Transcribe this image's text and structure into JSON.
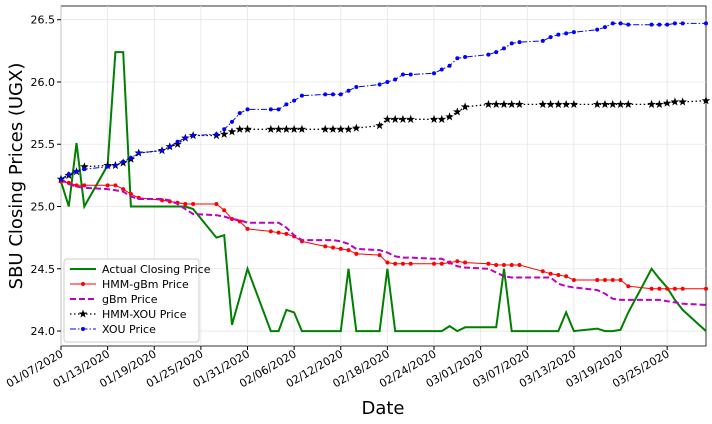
{
  "chart_data": {
    "type": "line",
    "y_label": "SBU Closing Prices (UGX)",
    "x_label": "Date",
    "grid": true,
    "legend": "lower left",
    "xlim": [
      "2020-01-07",
      "2020-03-30"
    ],
    "xticks": [
      {
        "value": "2020-01-07",
        "label": "01/07/2020"
      },
      {
        "value": "2020-01-13",
        "label": "01/13/2020"
      },
      {
        "value": "2020-01-19",
        "label": "01/19/2020"
      },
      {
        "value": "2020-01-25",
        "label": "01/25/2020"
      },
      {
        "value": "2020-01-31",
        "label": "01/31/2020"
      },
      {
        "value": "2020-02-06",
        "label": "02/06/2020"
      },
      {
        "value": "2020-02-12",
        "label": "02/12/2020"
      },
      {
        "value": "2020-02-18",
        "label": "02/18/2020"
      },
      {
        "value": "2020-02-24",
        "label": "02/24/2020"
      },
      {
        "value": "2020-03-01",
        "label": "03/01/2020"
      },
      {
        "value": "2020-03-07",
        "label": "03/07/2020"
      },
      {
        "value": "2020-03-13",
        "label": "03/13/2020"
      },
      {
        "value": "2020-03-19",
        "label": "03/19/2020"
      },
      {
        "value": "2020-03-25",
        "label": "03/25/2020"
      }
    ],
    "ylim": [
      23.88,
      26.61
    ],
    "yticks": [
      {
        "value": 24,
        "label": "24.0"
      },
      24.5,
      {
        "value": 25,
        "label": "25.0"
      },
      25.5,
      {
        "value": 26,
        "label": "26.0"
      },
      26.5
    ],
    "x": [
      "2020-01-07",
      "2020-01-08",
      "2020-01-09",
      "2020-01-10",
      "2020-01-13",
      "2020-01-14",
      "2020-01-15",
      "2020-01-16",
      "2020-01-17",
      "2020-01-20",
      "2020-01-21",
      "2020-01-22",
      "2020-01-23",
      "2020-01-24",
      "2020-01-27",
      "2020-01-28",
      "2020-01-29",
      "2020-01-30",
      "2020-01-31",
      "2020-02-03",
      "2020-02-04",
      "2020-02-05",
      "2020-02-06",
      "2020-02-07",
      "2020-02-10",
      "2020-02-11",
      "2020-02-12",
      "2020-02-13",
      "2020-02-14",
      "2020-02-17",
      "2020-02-18",
      "2020-02-19",
      "2020-02-20",
      "2020-02-21",
      "2020-02-24",
      "2020-02-25",
      "2020-02-26",
      "2020-02-27",
      "2020-02-28",
      "2020-03-02",
      "2020-03-03",
      "2020-03-04",
      "2020-03-05",
      "2020-03-06",
      "2020-03-09",
      "2020-03-10",
      "2020-03-11",
      "2020-03-12",
      "2020-03-13",
      "2020-03-16",
      "2020-03-17",
      "2020-03-18",
      "2020-03-19",
      "2020-03-20",
      "2020-03-23",
      "2020-03-24",
      "2020-03-25",
      "2020-03-26",
      "2020-03-27",
      "2020-03-30"
    ],
    "series": [
      {
        "name": "Actual Closing Price",
        "color": "#008000",
        "dash": "solid",
        "marker": "none",
        "width": 2,
        "values": [
          25.2,
          25.0,
          25.51,
          25.0,
          25.33,
          26.24,
          26.24,
          25.0,
          25.0,
          25.0,
          25.0,
          25.0,
          25.0,
          24.98,
          24.75,
          24.77,
          24.05,
          24.27,
          24.5,
          24.0,
          24.0,
          24.17,
          24.15,
          24.0,
          24.0,
          24.0,
          24.0,
          24.5,
          24.0,
          24.0,
          24.5,
          24.0,
          24.0,
          24.0,
          24.0,
          24.0,
          24.04,
          24.0,
          24.03,
          24.03,
          24.03,
          24.5,
          24.0,
          24.0,
          24.0,
          24.0,
          24.0,
          24.15,
          24.0,
          24.02,
          24.0,
          24.0,
          24.01,
          24.15,
          24.5,
          24.42,
          24.35,
          24.25,
          24.17,
          24.0
        ]
      },
      {
        "name": "HMM-gBm Price",
        "color": "#ff0000",
        "dash": "solid",
        "marker": "dot",
        "width": 1,
        "values": [
          25.2,
          25.19,
          25.17,
          25.17,
          25.17,
          25.17,
          25.14,
          25.1,
          25.07,
          25.05,
          25.04,
          25.03,
          25.02,
          25.02,
          25.02,
          24.97,
          24.9,
          24.88,
          24.82,
          24.8,
          24.79,
          24.78,
          24.76,
          24.72,
          24.68,
          24.67,
          24.66,
          24.65,
          24.62,
          24.61,
          24.55,
          24.54,
          24.54,
          24.54,
          24.54,
          24.54,
          24.55,
          24.56,
          24.55,
          24.54,
          24.53,
          24.53,
          24.53,
          24.53,
          24.48,
          24.46,
          24.45,
          24.44,
          24.41,
          24.41,
          24.41,
          24.41,
          24.41,
          24.36,
          24.34,
          24.34,
          24.34,
          24.34,
          24.34,
          24.34
        ]
      },
      {
        "name": "gBm Price",
        "color": "#c000c0",
        "dash": "dashed",
        "marker": "none",
        "width": 2,
        "values": [
          25.22,
          25.18,
          25.16,
          25.15,
          25.14,
          25.13,
          25.12,
          25.08,
          25.06,
          25.06,
          25.05,
          25.02,
          24.98,
          24.94,
          24.93,
          24.92,
          24.9,
          24.89,
          24.87,
          24.87,
          24.87,
          24.83,
          24.77,
          24.73,
          24.73,
          24.73,
          24.72,
          24.7,
          24.66,
          24.65,
          24.63,
          24.6,
          24.59,
          24.59,
          24.58,
          24.58,
          24.55,
          24.52,
          24.51,
          24.5,
          24.47,
          24.44,
          24.43,
          24.43,
          24.43,
          24.43,
          24.38,
          24.36,
          24.35,
          24.33,
          24.3,
          24.26,
          24.25,
          24.25,
          24.25,
          24.25,
          24.24,
          24.23,
          24.22,
          24.21
        ]
      },
      {
        "name": "HMM-XOU Price",
        "color": "#000000",
        "dash": "dotted",
        "marker": "star",
        "width": 1.3,
        "values": [
          25.22,
          25.25,
          25.28,
          25.32,
          25.33,
          25.33,
          25.35,
          25.38,
          25.43,
          25.45,
          25.48,
          25.5,
          25.55,
          25.57,
          25.57,
          25.58,
          25.6,
          25.62,
          25.62,
          25.62,
          25.62,
          25.62,
          25.62,
          25.62,
          25.62,
          25.62,
          25.62,
          25.62,
          25.63,
          25.65,
          25.7,
          25.7,
          25.7,
          25.7,
          25.7,
          25.7,
          25.72,
          25.76,
          25.8,
          25.82,
          25.82,
          25.82,
          25.82,
          25.82,
          25.82,
          25.82,
          25.82,
          25.82,
          25.82,
          25.82,
          25.82,
          25.82,
          25.82,
          25.82,
          25.82,
          25.82,
          25.83,
          25.84,
          25.84,
          25.85
        ]
      },
      {
        "name": "XOU Price",
        "color": "#0000ff",
        "dash": "dashdot",
        "marker": "dot",
        "width": 1,
        "values": [
          25.22,
          25.26,
          25.28,
          25.3,
          25.32,
          25.33,
          25.36,
          25.39,
          25.43,
          25.45,
          25.48,
          25.52,
          25.55,
          25.57,
          25.58,
          25.62,
          25.68,
          25.75,
          25.78,
          25.78,
          25.78,
          25.82,
          25.85,
          25.89,
          25.9,
          25.9,
          25.9,
          25.93,
          25.96,
          25.98,
          26.0,
          26.02,
          26.06,
          26.06,
          26.07,
          26.1,
          26.13,
          26.19,
          26.2,
          26.22,
          26.24,
          26.27,
          26.31,
          26.32,
          26.33,
          26.36,
          26.38,
          26.39,
          26.4,
          26.42,
          26.44,
          26.47,
          26.47,
          26.46,
          26.46,
          26.46,
          26.46,
          26.47,
          26.47,
          26.47
        ]
      }
    ]
  }
}
